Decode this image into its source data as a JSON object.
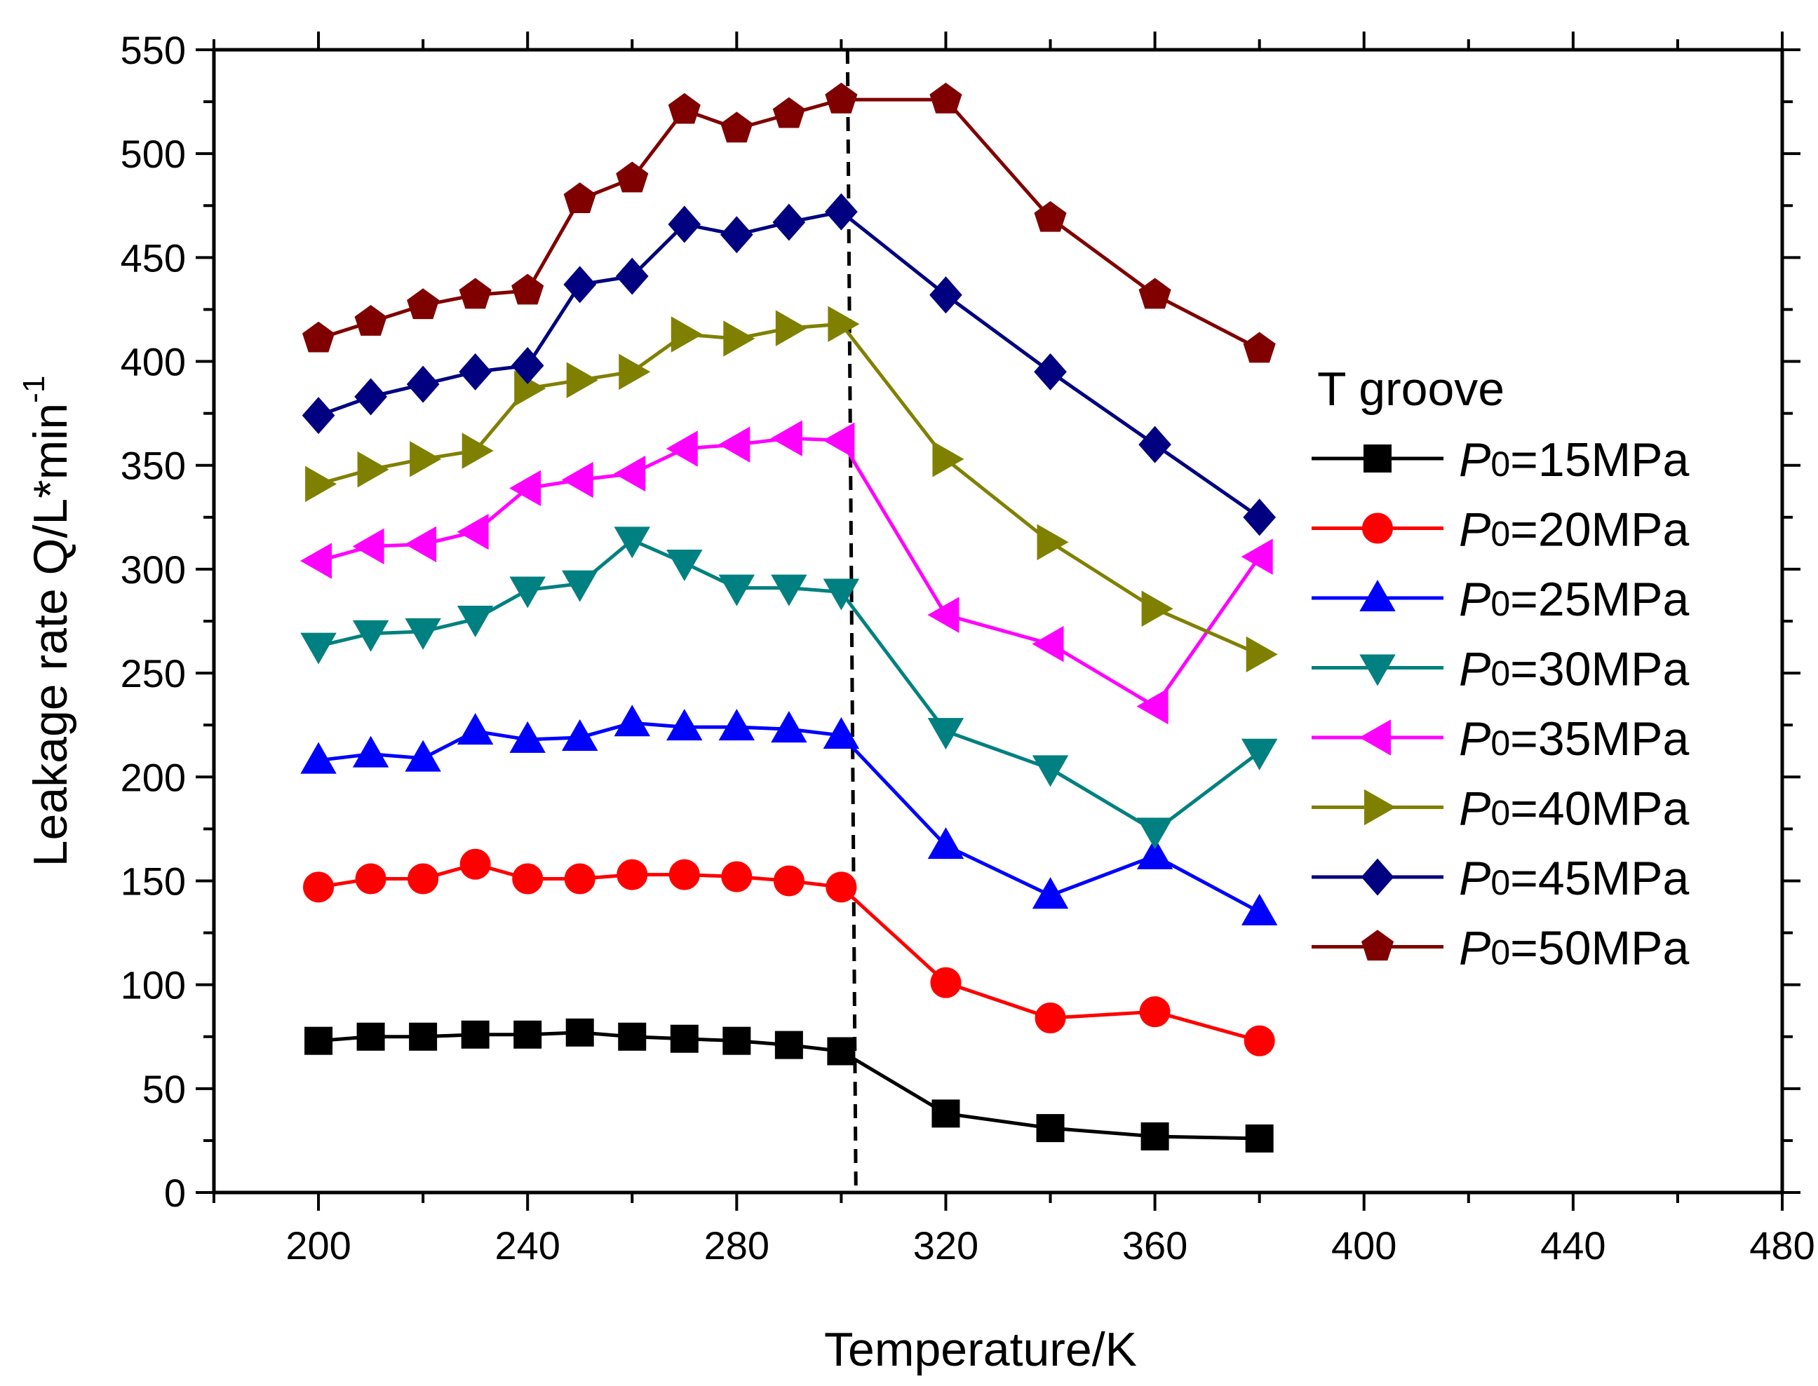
{
  "chart_data": {
    "type": "line",
    "title": "",
    "xlabel": "Temperature/K",
    "ylabel": "Leakage rate Q/L*min",
    "ylabel_superscript": "-1",
    "xlim": [
      180,
      480
    ],
    "ylim": [
      0,
      550
    ],
    "x_ticks": [
      200,
      240,
      280,
      320,
      360,
      400,
      440,
      480
    ],
    "x_tick_labels": [
      "200",
      "240",
      "280",
      "320",
      "360",
      "400",
      "440",
      "480"
    ],
    "y_ticks": [
      0,
      50,
      100,
      150,
      200,
      250,
      300,
      350,
      400,
      450,
      500,
      550
    ],
    "y_tick_labels": [
      "0",
      "50",
      "100",
      "150",
      "200",
      "250",
      "300",
      "350",
      "400",
      "450",
      "500",
      "550"
    ],
    "grid": false,
    "legend_title": "T groove",
    "legend_position": "right",
    "reference_line": {
      "x": 302,
      "style": "dashed",
      "color": "#000000"
    },
    "x": [
      200,
      210,
      220,
      230,
      240,
      250,
      260,
      270,
      280,
      290,
      300,
      320,
      340,
      360,
      380
    ],
    "series": [
      {
        "name": "P0=15MPa",
        "name_italic": "P",
        "name_sub": "0",
        "name_rest": "=15MPa",
        "color": "#000000",
        "marker": "square",
        "values": [
          73,
          75,
          75,
          76,
          76,
          77,
          75,
          74,
          73,
          71,
          68,
          38,
          31,
          27,
          26
        ]
      },
      {
        "name": "P0=20MPa",
        "name_italic": "P",
        "name_sub": "0",
        "name_rest": "=20MPa",
        "color": "#ff0000",
        "marker": "circle",
        "values": [
          147,
          151,
          151,
          158,
          151,
          151,
          153,
          153,
          152,
          150,
          147,
          101,
          84,
          87,
          73
        ]
      },
      {
        "name": "P0=25MPa",
        "name_italic": "P",
        "name_sub": "0",
        "name_rest": "=25MPa",
        "color": "#0000ff",
        "marker": "triangle-up",
        "values": [
          208,
          211,
          209,
          222,
          218,
          219,
          226,
          224,
          224,
          223,
          220,
          167,
          143,
          162,
          135
        ]
      },
      {
        "name": "P0=30MPa",
        "name_italic": "P",
        "name_sub": "0",
        "name_rest": "=30MPa",
        "color": "#008080",
        "marker": "triangle-down",
        "values": [
          263,
          269,
          270,
          276,
          290,
          293,
          314,
          303,
          291,
          291,
          289,
          222,
          204,
          174,
          212
        ]
      },
      {
        "name": "P0=35MPa",
        "name_italic": "P",
        "name_sub": "0",
        "name_rest": "=35MPa",
        "color": "#ff00ff",
        "marker": "triangle-left",
        "values": [
          304,
          311,
          312,
          318,
          339,
          343,
          346,
          358,
          360,
          363,
          362,
          278,
          264,
          234,
          306
        ]
      },
      {
        "name": "P0=40MPa",
        "name_italic": "P",
        "name_sub": "0",
        "name_rest": "=40MPa",
        "color": "#808000",
        "marker": "triangle-right",
        "values": [
          341,
          348,
          353,
          357,
          387,
          391,
          395,
          413,
          411,
          416,
          418,
          353,
          313,
          281,
          259
        ]
      },
      {
        "name": "P0=45MPa",
        "name_italic": "P",
        "name_sub": "0",
        "name_rest": "=45MPa",
        "color": "#000080",
        "marker": "diamond",
        "values": [
          374,
          383,
          389,
          395,
          398,
          437,
          441,
          466,
          461,
          467,
          472,
          432,
          395,
          360,
          325
        ]
      },
      {
        "name": "P0=50MPa",
        "name_italic": "P",
        "name_sub": "0",
        "name_rest": "=50MPa",
        "color": "#800000",
        "marker": "pentagon",
        "values": [
          411,
          419,
          427,
          432,
          434,
          478,
          488,
          521,
          512,
          519,
          526,
          526,
          469,
          432,
          406
        ]
      }
    ]
  }
}
